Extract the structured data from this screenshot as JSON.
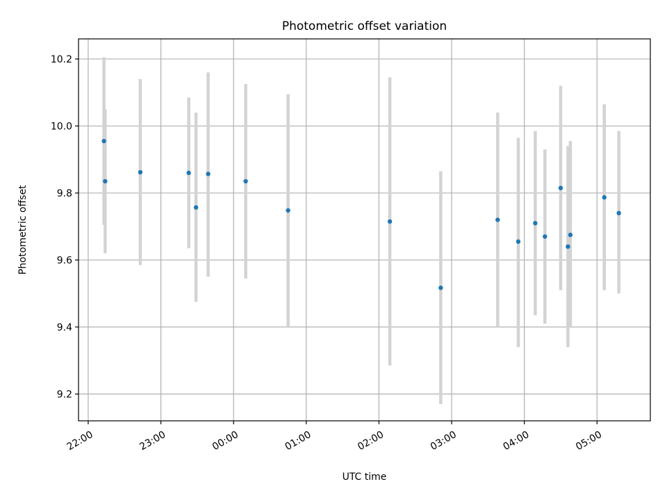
{
  "chart_data": {
    "type": "scatter",
    "title": "Photometric offset variation",
    "xlabel": "UTC time",
    "ylabel": "Photometric offset",
    "x_tick_labels": [
      "22:00",
      "23:00",
      "00:00",
      "01:00",
      "02:00",
      "03:00",
      "04:00",
      "05:00"
    ],
    "y_tick_labels": [
      "9.2",
      "9.4",
      "9.6",
      "9.8",
      "10.0",
      "10.2"
    ],
    "y_ticks": [
      9.2,
      9.4,
      9.6,
      9.8,
      10.0,
      10.2
    ],
    "xlim": [
      "21:52",
      "05:44"
    ],
    "ylim": [
      9.12,
      10.26
    ],
    "grid": true,
    "marker_color": "#1f77b4",
    "errorbar_color": "#d3d3d3",
    "points": [
      {
        "time": "22:13",
        "y": 9.955,
        "y_low": 9.705,
        "y_high": 10.205
      },
      {
        "time": "22:14",
        "y": 9.835,
        "y_low": 9.62,
        "y_high": 10.05
      },
      {
        "time": "22:43",
        "y": 9.862,
        "y_low": 9.585,
        "y_high": 10.14
      },
      {
        "time": "23:23",
        "y": 9.86,
        "y_low": 9.635,
        "y_high": 10.085
      },
      {
        "time": "23:29",
        "y": 9.757,
        "y_low": 9.475,
        "y_high": 10.04
      },
      {
        "time": "23:39",
        "y": 9.857,
        "y_low": 9.55,
        "y_high": 10.16
      },
      {
        "time": "00:10",
        "y": 9.835,
        "y_low": 9.545,
        "y_high": 10.125
      },
      {
        "time": "00:45",
        "y": 9.748,
        "y_low": 9.4,
        "y_high": 10.095
      },
      {
        "time": "02:09",
        "y": 9.715,
        "y_low": 9.285,
        "y_high": 10.145
      },
      {
        "time": "02:51",
        "y": 9.517,
        "y_low": 9.17,
        "y_high": 9.865
      },
      {
        "time": "03:38",
        "y": 9.72,
        "y_low": 9.4,
        "y_high": 10.04
      },
      {
        "time": "03:55",
        "y": 9.655,
        "y_low": 9.34,
        "y_high": 9.965
      },
      {
        "time": "04:09",
        "y": 9.71,
        "y_low": 9.435,
        "y_high": 9.985
      },
      {
        "time": "04:17",
        "y": 9.67,
        "y_low": 9.41,
        "y_high": 9.93
      },
      {
        "time": "04:30",
        "y": 9.815,
        "y_low": 9.51,
        "y_high": 10.12
      },
      {
        "time": "04:36",
        "y": 9.64,
        "y_low": 9.34,
        "y_high": 9.94
      },
      {
        "time": "04:38",
        "y": 9.675,
        "y_low": 9.4,
        "y_high": 9.955
      },
      {
        "time": "05:06",
        "y": 9.787,
        "y_low": 9.51,
        "y_high": 10.065
      },
      {
        "time": "05:18",
        "y": 9.74,
        "y_low": 9.5,
        "y_high": 9.985
      }
    ]
  }
}
